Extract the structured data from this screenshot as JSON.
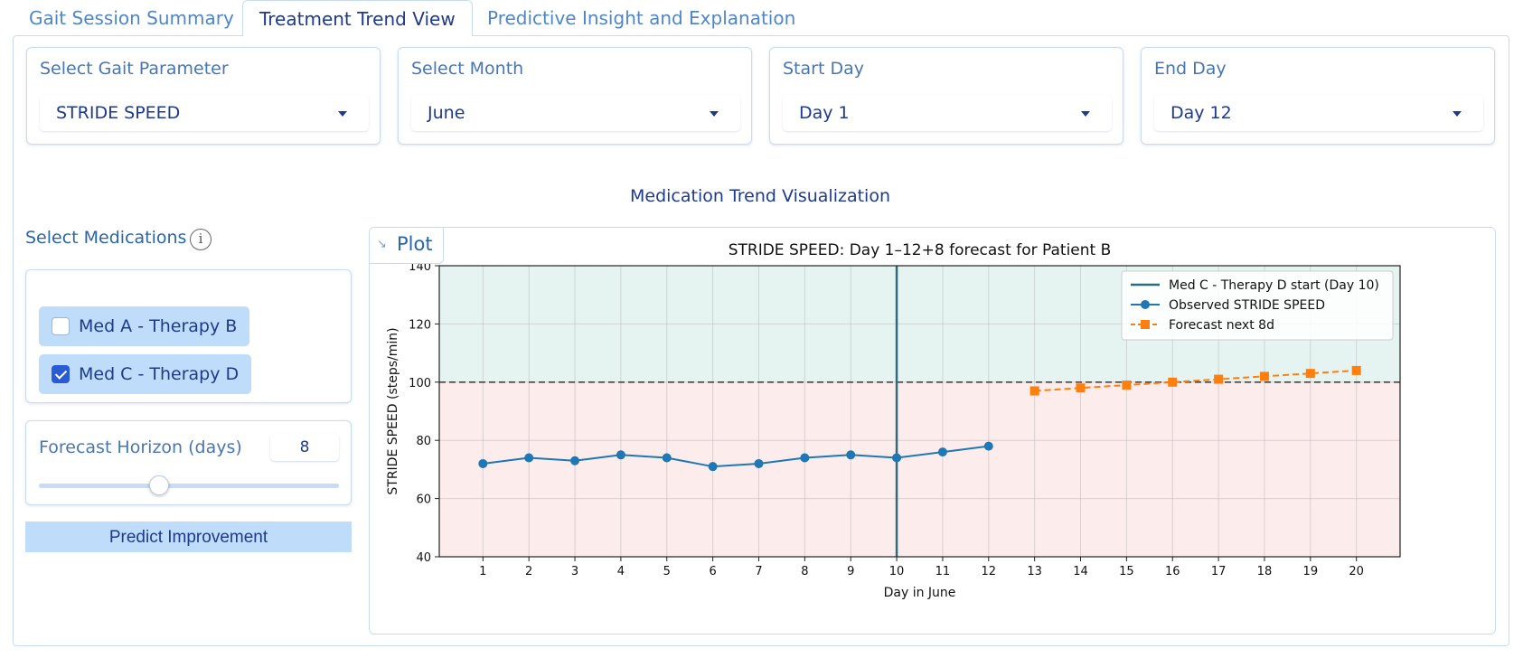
{
  "tabs": [
    {
      "label": "Gait Session Summary"
    },
    {
      "label": "Treatment Trend View"
    },
    {
      "label": "Predictive Insight and Explanation"
    }
  ],
  "filters": [
    {
      "label": "Select Gait Parameter",
      "value": "STRIDE SPEED"
    },
    {
      "label": "Select Month",
      "value": "June"
    },
    {
      "label": "Start Day",
      "value": "Day 1"
    },
    {
      "label": "End Day",
      "value": "Day 12"
    }
  ],
  "viz_title": "Medication Trend Visualization",
  "medications": {
    "header": "Select Medications",
    "items": [
      {
        "label": "Med A - Therapy B",
        "checked": false
      },
      {
        "label": "Med C - Therapy D",
        "checked": true
      }
    ]
  },
  "forecast_horizon": {
    "label": "Forecast Horizon (days)",
    "value": "8",
    "slider_fraction": 0.4
  },
  "predict_button": "Predict Improvement",
  "plot_tab_label": "Plot",
  "colors": {
    "observed": "#1f77b4",
    "forecast": "#ff7f0e",
    "vline": "#2e6b80",
    "above": "#e6f4f1",
    "below": "#fcecec"
  },
  "chart_data": {
    "type": "line",
    "title": "STRIDE SPEED: Day 1–12+8 forecast for Patient B",
    "xlabel": "Day in June",
    "ylabel": "STRIDE SPEED (steps/min)",
    "xlim": [
      0.05,
      20.95
    ],
    "ylim": [
      40,
      140
    ],
    "yticks": [
      40,
      60,
      80,
      100,
      120,
      140
    ],
    "xticks": [
      1,
      2,
      3,
      4,
      5,
      6,
      7,
      8,
      9,
      10,
      11,
      12,
      13,
      14,
      15,
      16,
      17,
      18,
      19,
      20
    ],
    "threshold": 100,
    "vline": {
      "x": 10,
      "name": "Med C - Therapy D start (Day 10)"
    },
    "series": [
      {
        "name": "Observed STRIDE SPEED",
        "x": [
          1,
          2,
          3,
          4,
          5,
          6,
          7,
          8,
          9,
          10,
          11,
          12
        ],
        "values": [
          72,
          74,
          73,
          75,
          74,
          71,
          72,
          74,
          75,
          74,
          76,
          78
        ]
      },
      {
        "name": "Forecast next 8d",
        "x": [
          13,
          14,
          15,
          16,
          17,
          18,
          19,
          20
        ],
        "values": [
          97,
          98,
          99,
          100,
          101,
          102,
          103,
          104
        ]
      }
    ],
    "legend_position": "top-right",
    "grid": true
  }
}
